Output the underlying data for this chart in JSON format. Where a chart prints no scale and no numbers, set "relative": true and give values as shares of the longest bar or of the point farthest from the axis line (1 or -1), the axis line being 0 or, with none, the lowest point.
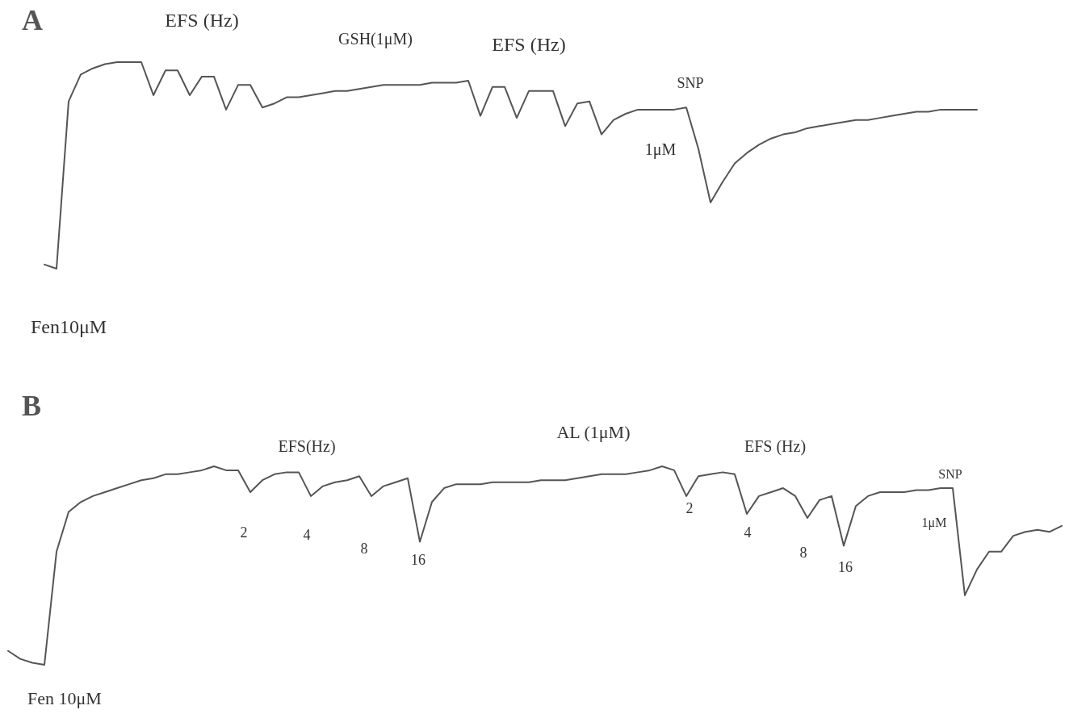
{
  "chart_data": [
    {
      "type": "line",
      "title": "A",
      "relative": true,
      "color": "#555555",
      "marker": "none",
      "line_style": "solid",
      "categories": [
        null,
        null,
        null,
        null,
        null,
        null,
        null,
        null,
        null,
        null,
        null,
        null,
        null,
        null,
        null,
        null,
        null,
        null,
        null,
        null,
        null,
        null,
        null,
        null,
        null,
        null,
        null,
        null,
        null,
        null,
        null,
        null,
        null,
        null,
        null,
        null,
        null,
        null,
        null,
        null,
        null,
        null,
        null,
        null,
        null,
        null,
        null,
        null,
        null,
        null,
        null,
        null,
        null,
        null,
        null,
        null,
        null,
        null,
        null,
        null,
        null,
        null,
        null,
        null,
        null,
        null,
        null,
        null,
        null,
        null,
        null,
        null,
        null,
        null,
        null,
        null,
        null,
        null
      ],
      "values": [
        0.02,
        0,
        0.81,
        0.94,
        0.97,
        0.99,
        1,
        1,
        1,
        0.84,
        0.96,
        0.96,
        0.84,
        0.93,
        0.93,
        0.77,
        0.89,
        0.89,
        0.78,
        0.8,
        0.83,
        0.83,
        0.84,
        0.85,
        0.86,
        0.86,
        0.87,
        0.88,
        0.89,
        0.89,
        0.89,
        0.89,
        0.9,
        0.9,
        0.9,
        0.91,
        0.74,
        0.88,
        0.88,
        0.73,
        0.86,
        0.86,
        0.86,
        0.69,
        0.8,
        0.81,
        0.65,
        0.72,
        0.75,
        0.77,
        0.77,
        0.77,
        0.77,
        0.78,
        0.58,
        0.32,
        0.42,
        0.51,
        0.56,
        0.6,
        0.63,
        0.65,
        0.66,
        0.68,
        0.69,
        0.7,
        0.71,
        0.72,
        0.72,
        0.73,
        0.74,
        0.75,
        0.76,
        0.76,
        0.77,
        0.77,
        0.77,
        0.77
      ],
      "annotations": [
        "EFS (Hz)",
        "GSH(1μM)",
        "EFS (Hz)",
        "SNP",
        "1μM",
        "Fen10μM"
      ]
    },
    {
      "type": "line",
      "title": "B",
      "relative": true,
      "color": "#555555",
      "marker": "none",
      "line_style": "solid",
      "categories": [
        null,
        null,
        null,
        null,
        null,
        null,
        null,
        null,
        null,
        null,
        null,
        null,
        null,
        null,
        null,
        null,
        null,
        null,
        null,
        null,
        null,
        null,
        null,
        null,
        null,
        null,
        null,
        null,
        null,
        null,
        null,
        null,
        null,
        null,
        null,
        null,
        null,
        null,
        null,
        null,
        null,
        null,
        null,
        null,
        null,
        null,
        null,
        null,
        null,
        null,
        null,
        null,
        null,
        null,
        null,
        null,
        null,
        null,
        null,
        null,
        null,
        null,
        null,
        null,
        null,
        null,
        null,
        null,
        null,
        null,
        null,
        null,
        null,
        null,
        null,
        null,
        null,
        null,
        null,
        null,
        null,
        null,
        null,
        null,
        null,
        null,
        null,
        null
      ],
      "values": [
        0.07,
        0.03,
        0.01,
        0,
        0.57,
        0.77,
        0.82,
        0.85,
        0.87,
        0.89,
        0.91,
        0.93,
        0.94,
        0.96,
        0.96,
        0.97,
        0.98,
        1,
        0.98,
        0.98,
        0.87,
        0.93,
        0.96,
        0.97,
        0.97,
        0.85,
        0.9,
        0.92,
        0.93,
        0.95,
        0.85,
        0.9,
        0.92,
        0.94,
        0.62,
        0.82,
        0.89,
        0.91,
        0.91,
        0.91,
        0.92,
        0.92,
        0.92,
        0.92,
        0.93,
        0.93,
        0.93,
        0.94,
        0.95,
        0.96,
        0.96,
        0.96,
        0.97,
        0.98,
        1,
        0.98,
        0.85,
        0.95,
        0.96,
        0.97,
        0.96,
        0.76,
        0.85,
        0.87,
        0.89,
        0.85,
        0.74,
        0.83,
        0.85,
        0.6,
        0.8,
        0.85,
        0.87,
        0.87,
        0.87,
        0.88,
        0.88,
        0.89,
        0.89,
        0.35,
        0.48,
        0.57,
        0.57,
        0.65,
        0.67,
        0.68,
        0.67,
        0.7
      ],
      "annotations": [
        "EFS(Hz)",
        "AL (1μM)",
        "EFS (Hz)",
        "2",
        "4",
        "8",
        "16",
        "2",
        "4",
        "8",
        "16",
        "SNP",
        "1μM",
        "Fen 10μM"
      ]
    }
  ]
}
